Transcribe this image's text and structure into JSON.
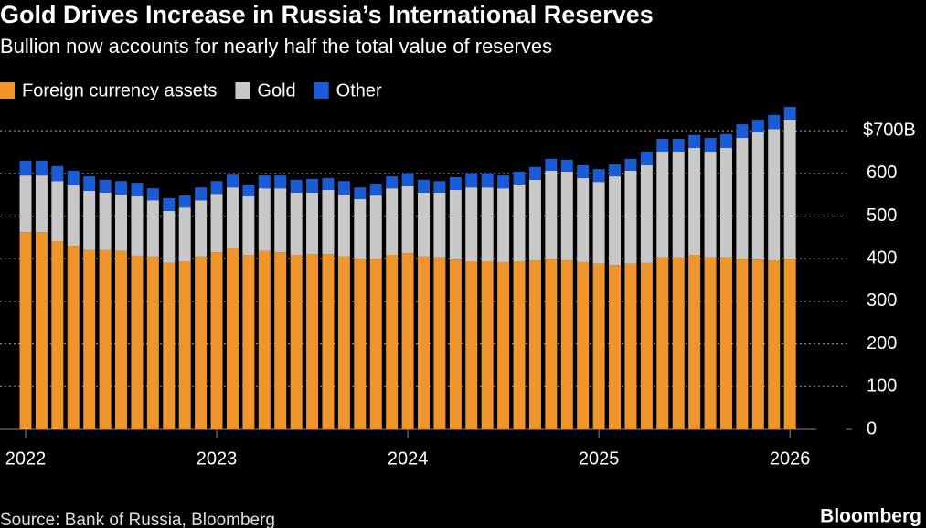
{
  "chart_data": {
    "type": "stacked-bar",
    "title": "Gold Drives Increase in Russia’s International Reserves",
    "subtitle": "Bullion now accounts for nearly half the total value of reserves",
    "source": "Source: Bank of Russia, Bloomberg",
    "brand": "Bloomberg",
    "categories": [
      "2022",
      null,
      null,
      null,
      null,
      null,
      null,
      null,
      null,
      null,
      null,
      null,
      "2023",
      null,
      null,
      null,
      null,
      null,
      null,
      null,
      null,
      null,
      null,
      null,
      "2024",
      null,
      null,
      null,
      null,
      null,
      null,
      null,
      null,
      null,
      null,
      null,
      "2025",
      null,
      null,
      null,
      null,
      null,
      null,
      null,
      null,
      null,
      null,
      null,
      "2026"
    ],
    "series": [
      {
        "name": "Foreign currency assets",
        "color": "#f0952b",
        "values": [
          462,
          462,
          441,
          430,
          420,
          420,
          418,
          407,
          405,
          390,
          394,
          405,
          415,
          424,
          409,
          418,
          415,
          409,
          411,
          411,
          405,
          400,
          400,
          409,
          413,
          405,
          403,
          398,
          394,
          394,
          392,
          394,
          396,
          400,
          396,
          392,
          388,
          385,
          388,
          390,
          403,
          403,
          409,
          403,
          403,
          400,
          398,
          396,
          400
        ]
      },
      {
        "name": "Gold",
        "color": "#c8c8c8",
        "values": [
          133,
          133,
          141,
          142,
          139,
          135,
          132,
          139,
          132,
          122,
          126,
          132,
          137,
          143,
          137,
          147,
          150,
          146,
          144,
          150,
          145,
          140,
          148,
          156,
          157,
          150,
          152,
          163,
          173,
          173,
          173,
          180,
          189,
          206,
          208,
          197,
          192,
          208,
          218,
          229,
          248,
          248,
          251,
          248,
          257,
          283,
          298,
          308,
          326
        ]
      },
      {
        "name": "Other",
        "color": "#1a5cd6",
        "values": [
          35,
          35,
          35,
          34,
          34,
          30,
          32,
          32,
          28,
          30,
          28,
          30,
          30,
          30,
          28,
          30,
          30,
          30,
          32,
          28,
          32,
          27,
          28,
          28,
          30,
          30,
          27,
          30,
          33,
          33,
          30,
          30,
          30,
          28,
          28,
          30,
          30,
          28,
          28,
          32,
          30,
          30,
          30,
          32,
          32,
          32,
          30,
          33,
          30
        ]
      }
    ],
    "ylim": [
      0,
      770
    ],
    "yticks": [
      0,
      100,
      200,
      300,
      400,
      500,
      600,
      {
        "value": 700,
        "label": "$700B"
      }
    ],
    "grid": true,
    "legend": "top-left"
  }
}
